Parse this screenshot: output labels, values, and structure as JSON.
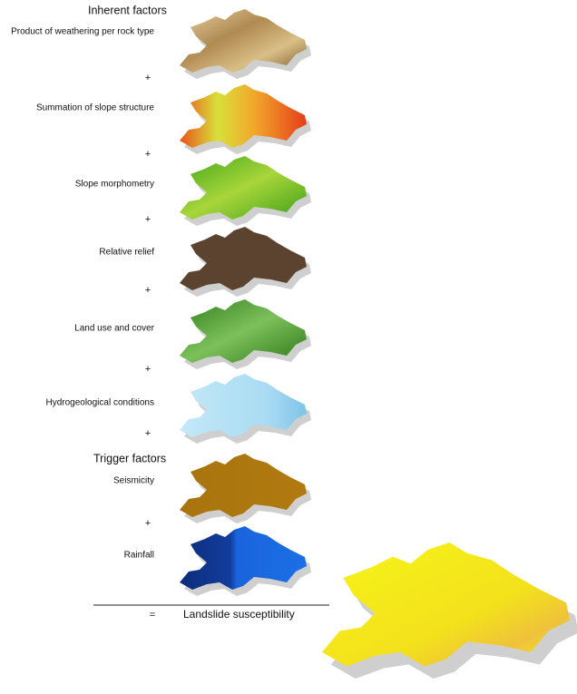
{
  "sections": [
    {
      "title": "Inherent factors",
      "layers": [
        "Product of weathering per rock type",
        "Summation of slope structure",
        "Slope morphometry",
        "Relative relief",
        "Land use and cover",
        "Hydrogeological conditions"
      ]
    },
    {
      "title": "Trigger factors",
      "layers": [
        "Seismicity",
        "Rainfall"
      ]
    }
  ],
  "plus_signs": [
    "+",
    "+",
    "+",
    "+",
    "+",
    "+",
    "+"
  ],
  "equals": "=",
  "result": "Landslide susceptibility"
}
